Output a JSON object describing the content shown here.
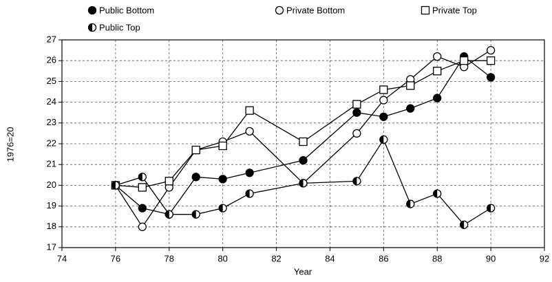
{
  "chart_data": {
    "type": "line",
    "x_label": "Year",
    "y_label": "1976=20",
    "x": [
      76,
      77,
      78,
      79,
      80,
      81,
      83,
      85,
      86,
      87,
      88,
      89,
      90
    ],
    "series": [
      {
        "name": "Public Bottom",
        "color": "#000000",
        "marker": "filled",
        "values": [
          20,
          18.9,
          18.6,
          20.4,
          20.3,
          20.6,
          21.2,
          23.5,
          23.3,
          23.7,
          24.2,
          26.2,
          25.2
        ]
      },
      {
        "name": "Private Bottom",
        "color": "#000000",
        "marker": "open",
        "values": [
          20,
          18,
          19.9,
          21.7,
          22.1,
          22.6,
          20.1,
          22.5,
          24.1,
          25.1,
          26.2,
          25.7,
          26.5
        ]
      },
      {
        "name": "Private Top",
        "color": "#000000",
        "marker": "square",
        "values": [
          20,
          19.9,
          20.2,
          21.7,
          21.9,
          23.6,
          22.1,
          23.9,
          24.6,
          24.8,
          25.5,
          26,
          26
        ]
      },
      {
        "name": "Public Top",
        "color": "#000000",
        "marker": "half",
        "values": [
          20,
          20.4,
          18.6,
          18.6,
          18.9,
          19.6,
          20.1,
          20.2,
          22.2,
          19.1,
          19.6,
          18.1,
          18.9
        ]
      }
    ],
    "xlim": [
      74,
      92
    ],
    "xticks": [
      74,
      76,
      78,
      80,
      82,
      84,
      86,
      88,
      90,
      92
    ],
    "ylim": [
      17,
      27
    ],
    "yticks": [
      17,
      18,
      19,
      20,
      21,
      22,
      23,
      24,
      25,
      26,
      27
    ],
    "grid": true
  }
}
